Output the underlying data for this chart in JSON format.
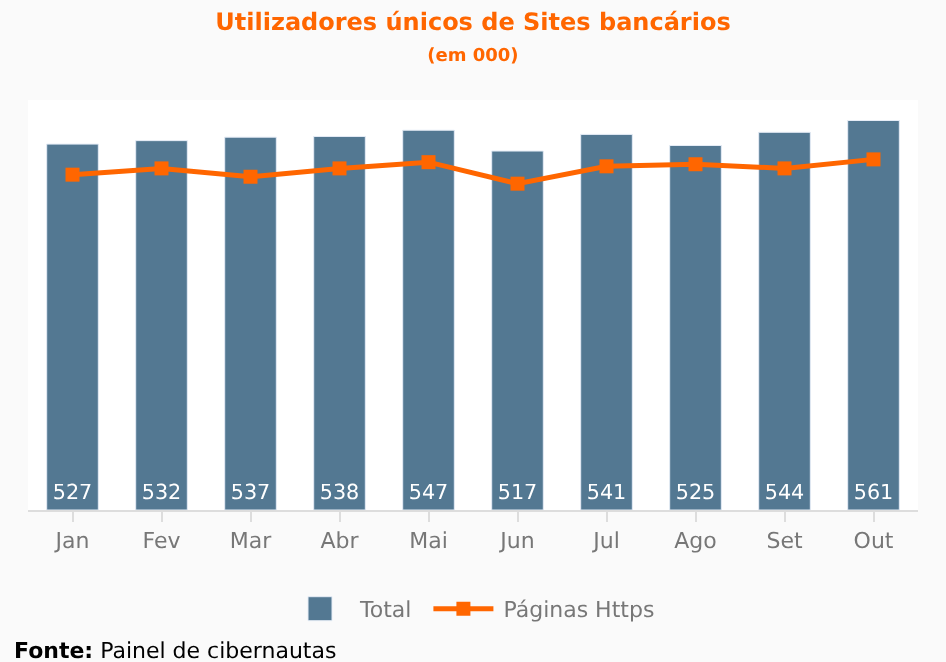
{
  "chart_data": {
    "type": "bar",
    "title": "Utilizadores únicos de Sites bancários",
    "subtitle": "(em 000)",
    "categories": [
      "Jan",
      "Fev",
      "Mar",
      "Abr",
      "Mai",
      "Jun",
      "Jul",
      "Ago",
      "Set",
      "Out"
    ],
    "series": [
      {
        "name": "Total",
        "color": "#537892",
        "values": [
          527,
          532,
          537,
          538,
          547,
          517,
          541,
          525,
          544,
          561
        ],
        "value_labels": [
          "527",
          "532",
          "537",
          "538",
          "547",
          "517",
          "541",
          "525",
          "544",
          "561"
        ]
      },
      {
        "name": "Páginas Https",
        "type": "line",
        "color": "#ff6600",
        "marker": "square",
        "values": [
          483,
          492,
          480,
          492,
          501,
          470,
          495,
          498,
          492,
          505
        ]
      }
    ],
    "legend": "bottom",
    "annotations": [
      "Fonte: Painel de cibernautas"
    ]
  }
}
